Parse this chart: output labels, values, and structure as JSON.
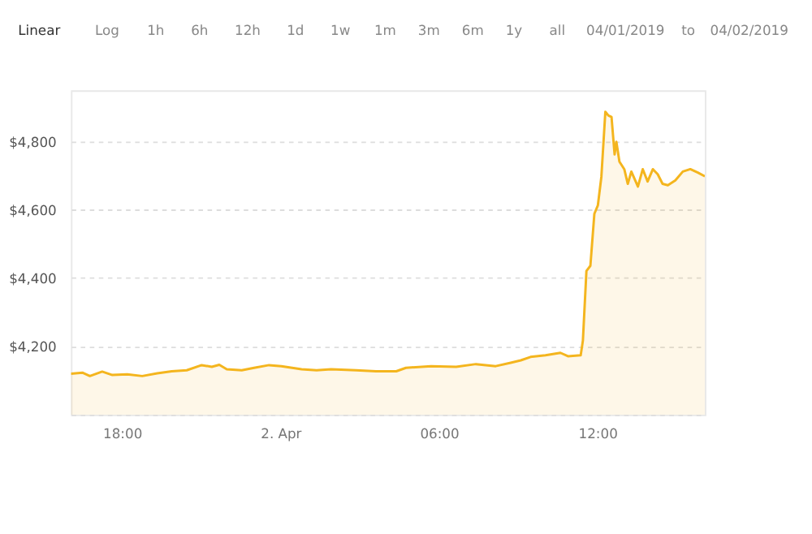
{
  "chart_data": {
    "type": "area",
    "annotations": [
      "Linear",
      "Log",
      "1h",
      "6h",
      "12h",
      "1d",
      "1w",
      "1m",
      "3m",
      "6m",
      "1y",
      "all",
      "04/01/2019",
      "to",
      "04/02/2019"
    ],
    "x": [
      "2019-04-01T16:04",
      "2019-04-01T16:30",
      "2019-04-01T16:47",
      "2019-04-01T17:15",
      "2019-04-01T17:38",
      "2019-04-01T18:12",
      "2019-04-01T18:46",
      "2019-04-01T19:20",
      "2019-04-01T19:53",
      "2019-04-01T20:27",
      "2019-04-01T21:01",
      "2019-04-01T21:24",
      "2019-04-01T21:41",
      "2019-04-01T21:58",
      "2019-04-01T22:32",
      "2019-04-01T23:00",
      "2019-04-01T23:34",
      "2019-04-02T00:02",
      "2019-04-02T00:48",
      "2019-04-02T01:22",
      "2019-04-02T01:55",
      "2019-04-02T02:52",
      "2019-04-02T03:37",
      "2019-04-02T04:23",
      "2019-04-02T04:45",
      "2019-04-02T05:42",
      "2019-04-02T06:39",
      "2019-04-02T07:24",
      "2019-04-02T08:09",
      "2019-04-02T08:43",
      "2019-04-02T09:06",
      "2019-04-02T09:28",
      "2019-04-02T10:02",
      "2019-04-02T10:36",
      "2019-04-02T10:53",
      "2019-04-02T11:22",
      "2019-04-02T11:27",
      "2019-04-02T11:35",
      "2019-04-02T11:44",
      "2019-04-02T11:53",
      "2019-04-02T12:01",
      "2019-04-02T12:09",
      "2019-04-02T12:18",
      "2019-04-02T12:25",
      "2019-04-02T12:32",
      "2019-04-02T12:39",
      "2019-04-02T12:43",
      "2019-04-02T12:50",
      "2019-04-02T13:01",
      "2019-04-02T13:09",
      "2019-04-02T13:17",
      "2019-04-02T13:32",
      "2019-04-02T13:43",
      "2019-04-02T13:54",
      "2019-04-02T14:06",
      "2019-04-02T14:17",
      "2019-04-02T14:28",
      "2019-04-02T14:40",
      "2019-04-02T14:57",
      "2019-04-02T15:14",
      "2019-04-02T15:31",
      "2019-04-02T15:48",
      "2019-04-02T16:04"
    ],
    "series": [
      {
        "color": "#f4b51e",
        "values": [
          4120,
          4123,
          4113,
          4126,
          4116,
          4118,
          4113,
          4121,
          4127,
          4130,
          4145,
          4140,
          4146,
          4133,
          4130,
          4137,
          4145,
          4142,
          4133,
          4130,
          4133,
          4130,
          4127,
          4127,
          4137,
          4142,
          4140,
          4148,
          4142,
          4152,
          4159,
          4169,
          4174,
          4181,
          4171,
          4174,
          4217,
          4421,
          4436,
          4588,
          4613,
          4697,
          4887,
          4876,
          4872,
          4762,
          4799,
          4741,
          4719,
          4676,
          4712,
          4668,
          4719,
          4683,
          4719,
          4704,
          4676,
          4672,
          4686,
          4712,
          4719,
          4709,
          4698
        ]
      }
    ],
    "xlim": [
      "2019-04-01T16:04",
      "2019-04-02T16:04"
    ],
    "xticks": [
      {
        "value": "2019-04-01T18:00",
        "label": "18:00"
      },
      {
        "value": "2019-04-02T00:00",
        "label": "2. Apr"
      },
      {
        "value": "2019-04-02T06:00",
        "label": "06:00"
      },
      {
        "value": "2019-04-02T12:00",
        "label": "12:00"
      }
    ],
    "ylim": [
      4000,
      4950
    ],
    "yticks": [
      {
        "value": 4000,
        "label": null
      },
      {
        "value": 4200,
        "label": "$4,200"
      },
      {
        "value": 4400,
        "label": "$4,400"
      },
      {
        "value": 4600,
        "label": "$4,600"
      },
      {
        "value": 4800,
        "label": "$4,800"
      }
    ],
    "grid": "y"
  }
}
